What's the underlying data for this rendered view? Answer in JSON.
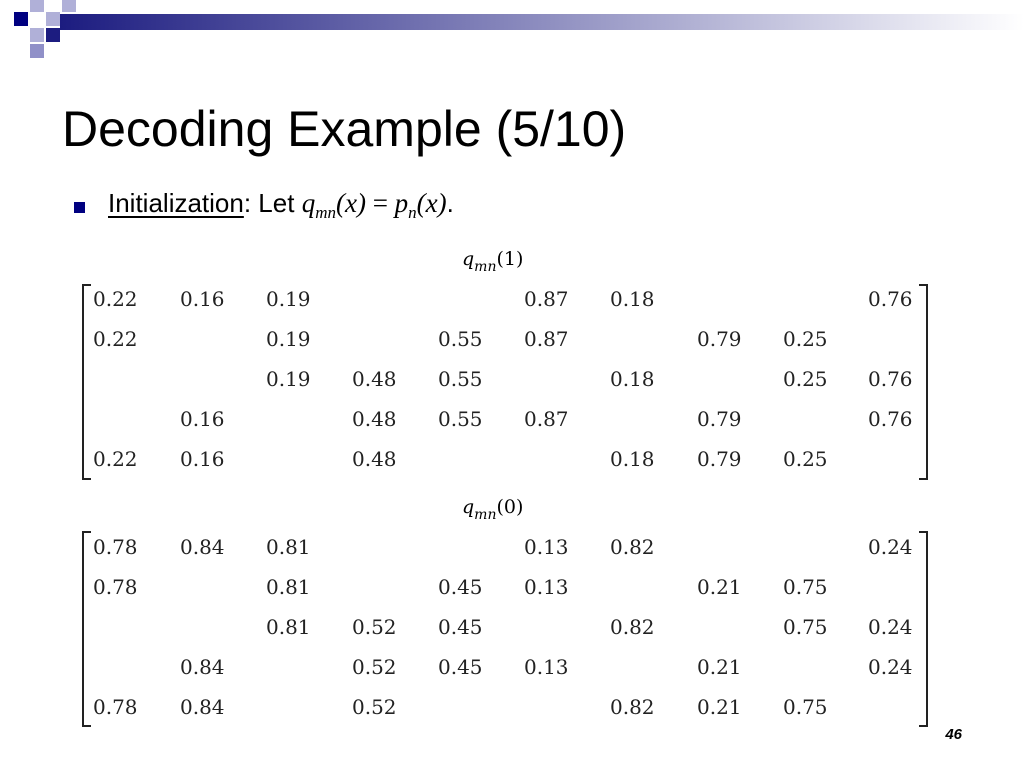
{
  "header": {
    "title": "Decoding Example (5/10)"
  },
  "bullet": {
    "term": "Initialization",
    "after": ": Let",
    "formula": {
      "lhs": "q",
      "lhs_sub": "mn",
      "arg": "(x)",
      "eq": "=",
      "rhs": "p",
      "rhs_sub": "n"
    },
    "end": "."
  },
  "matrices": [
    {
      "label": {
        "symbol": "q",
        "sub": "mn",
        "arg": "(1)"
      },
      "rows": [
        [
          "0.22",
          "0.16",
          "0.19",
          null,
          null,
          "0.87",
          "0.18",
          null,
          null,
          "0.76"
        ],
        [
          "0.22",
          null,
          "0.19",
          null,
          "0.55",
          "0.87",
          null,
          "0.79",
          "0.25",
          null
        ],
        [
          null,
          null,
          "0.19",
          "0.48",
          "0.55",
          null,
          "0.18",
          null,
          "0.25",
          "0.76"
        ],
        [
          null,
          "0.16",
          null,
          "0.48",
          "0.55",
          "0.87",
          null,
          "0.79",
          null,
          "0.76"
        ],
        [
          "0.22",
          "0.16",
          null,
          "0.48",
          null,
          null,
          "0.18",
          "0.79",
          "0.25",
          null
        ]
      ]
    },
    {
      "label": {
        "symbol": "q",
        "sub": "mn",
        "arg": "(0)"
      },
      "rows": [
        [
          "0.78",
          "0.84",
          "0.81",
          null,
          null,
          "0.13",
          "0.82",
          null,
          null,
          "0.24"
        ],
        [
          "0.78",
          null,
          "0.81",
          null,
          "0.45",
          "0.13",
          null,
          "0.21",
          "0.75",
          null
        ],
        [
          null,
          null,
          "0.81",
          "0.52",
          "0.45",
          null,
          "0.82",
          null,
          "0.75",
          "0.24"
        ],
        [
          null,
          "0.84",
          null,
          "0.52",
          "0.45",
          "0.13",
          null,
          "0.21",
          null,
          "0.24"
        ],
        [
          "0.78",
          "0.84",
          null,
          "0.52",
          null,
          null,
          "0.82",
          "0.21",
          "0.75",
          null
        ]
      ]
    }
  ],
  "footer": {
    "page": "46"
  }
}
